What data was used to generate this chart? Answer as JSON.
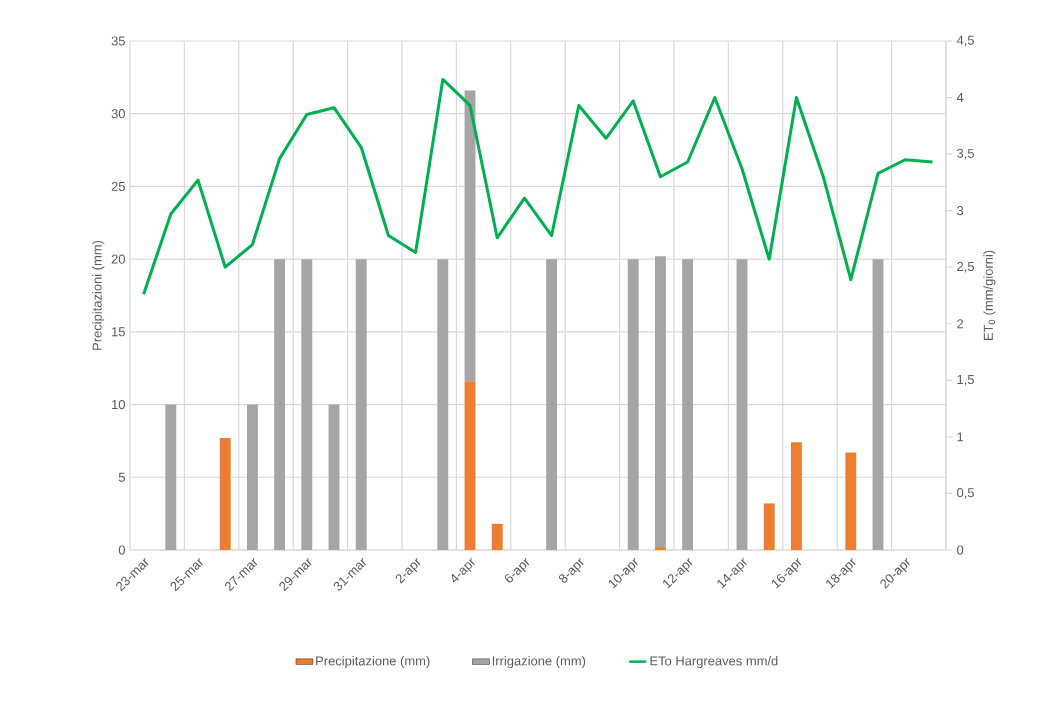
{
  "chart_data": {
    "type": "bar",
    "stacked": true,
    "ylabel": "Precipitazioni (mm)",
    "y2label": "ET$_{0}$ (mm/giorni)",
    "categories": [
      "23-mar",
      null,
      "25-mar",
      null,
      "27-mar",
      null,
      "29-mar",
      null,
      "31-mar",
      null,
      "2-apr",
      null,
      "4-apr",
      null,
      "6-apr",
      null,
      "8-apr",
      null,
      "10-apr",
      null,
      "12-apr",
      null,
      "14-apr",
      null,
      "16-apr",
      null,
      "18-apr",
      null,
      "20-apr",
      null
    ],
    "series": [
      {
        "name": "Precipitazione (mm)",
        "color": "#ed7d31",
        "values": [
          null,
          null,
          null,
          7.7,
          null,
          null,
          null,
          null,
          null,
          null,
          null,
          null,
          11.6,
          1.8,
          null,
          null,
          null,
          null,
          null,
          0.2,
          null,
          null,
          null,
          3.2,
          7.4,
          null,
          6.7,
          null,
          null,
          null
        ]
      },
      {
        "name": "Irrigazione (mm)",
        "color": "#a5a5a5",
        "values": [
          null,
          10,
          null,
          null,
          10,
          20,
          20,
          10,
          20,
          null,
          null,
          20,
          20,
          null,
          null,
          20,
          null,
          null,
          20,
          20,
          20,
          null,
          20,
          null,
          null,
          null,
          null,
          20,
          null,
          null
        ]
      },
      {
        "name": "ETo Hargreaves mm/d",
        "type": "line",
        "axis": "y2",
        "color": "#00b050",
        "values": [
          2.26,
          2.97,
          3.27,
          2.5,
          2.7,
          3.46,
          3.85,
          3.91,
          3.56,
          2.78,
          2.63,
          4.16,
          3.93,
          2.76,
          3.11,
          2.78,
          3.93,
          3.64,
          3.97,
          3.3,
          3.43,
          4.0,
          3.37,
          2.57,
          4.0,
          3.29,
          2.39,
          3.33,
          3.45,
          3.43
        ]
      }
    ],
    "ylim": [
      0,
      35
    ],
    "yticks": [
      0,
      5,
      10,
      15,
      20,
      25,
      30,
      35
    ],
    "y2lim": [
      0,
      4.5
    ],
    "y2ticks": [
      {
        "value": 0,
        "label": "0"
      },
      {
        "value": 0.5,
        "label": "0,5"
      },
      {
        "value": 1,
        "label": "1"
      },
      {
        "value": 1.5,
        "label": "1,5"
      },
      {
        "value": 2,
        "label": "2"
      },
      {
        "value": 2.5,
        "label": "2,5"
      },
      {
        "value": 3,
        "label": "3"
      },
      {
        "value": 3.5,
        "label": "3,5"
      },
      {
        "value": 4,
        "label": "4"
      },
      {
        "value": 4.5,
        "label": "4,5"
      }
    ],
    "grid": true,
    "legend": "bottom",
    "marker": "none",
    "line_style": "solid"
  }
}
